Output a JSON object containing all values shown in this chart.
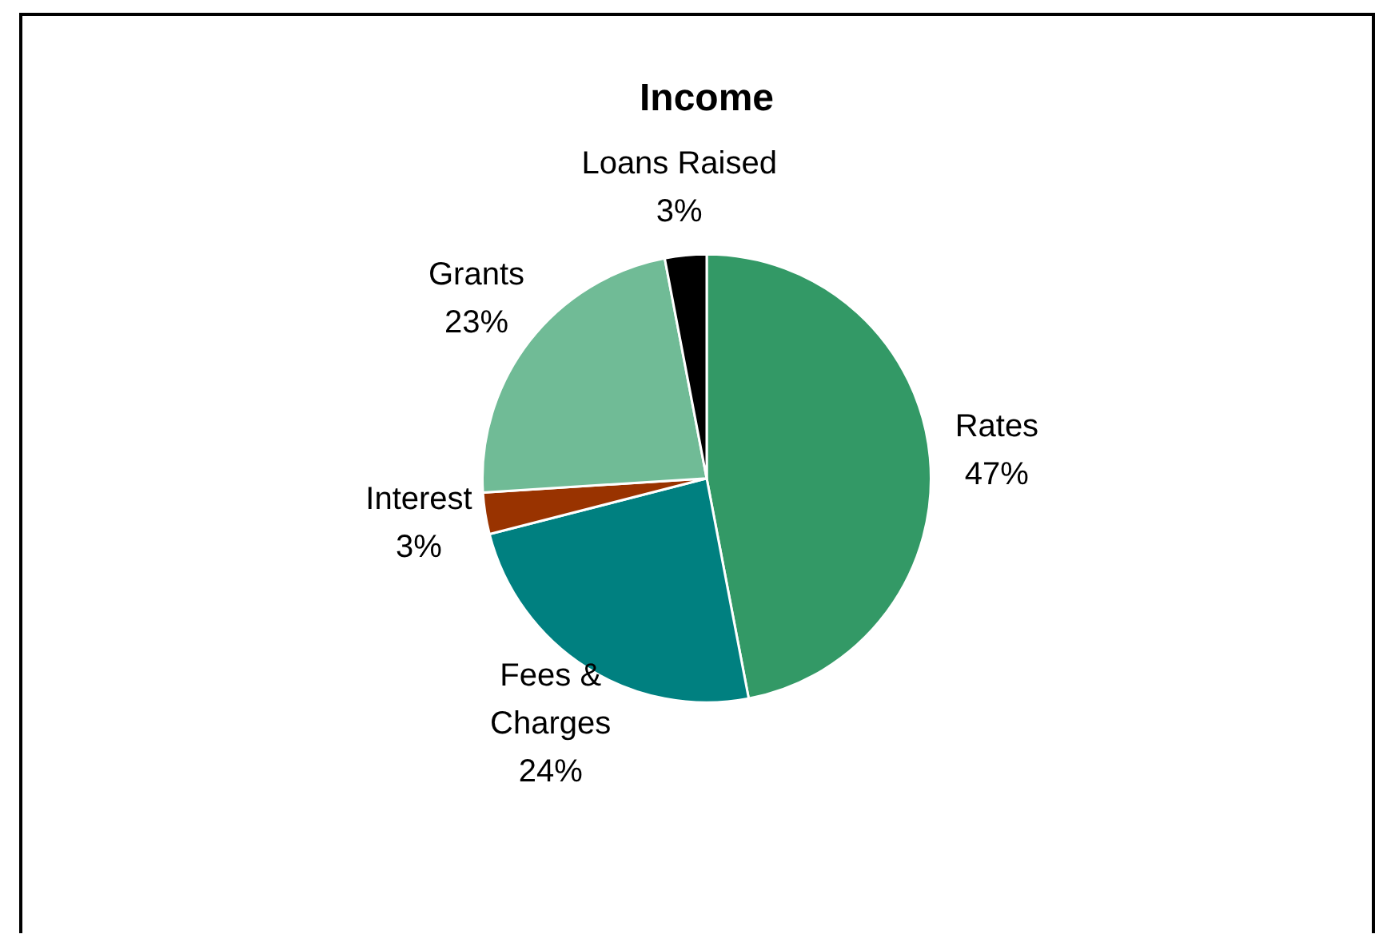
{
  "chart_data": {
    "type": "pie",
    "title": "Income",
    "categories": [
      "Rates",
      "Fees & Charges",
      "Interest",
      "Grants",
      "Loans Raised"
    ],
    "values": [
      47,
      24,
      3,
      23,
      3
    ],
    "value_labels": [
      "47%",
      "24%",
      "3%",
      "23%",
      "3%"
    ],
    "colors": [
      "#339966",
      "#008080",
      "#993300",
      "#70bb96",
      "#000000"
    ],
    "legend": false
  }
}
